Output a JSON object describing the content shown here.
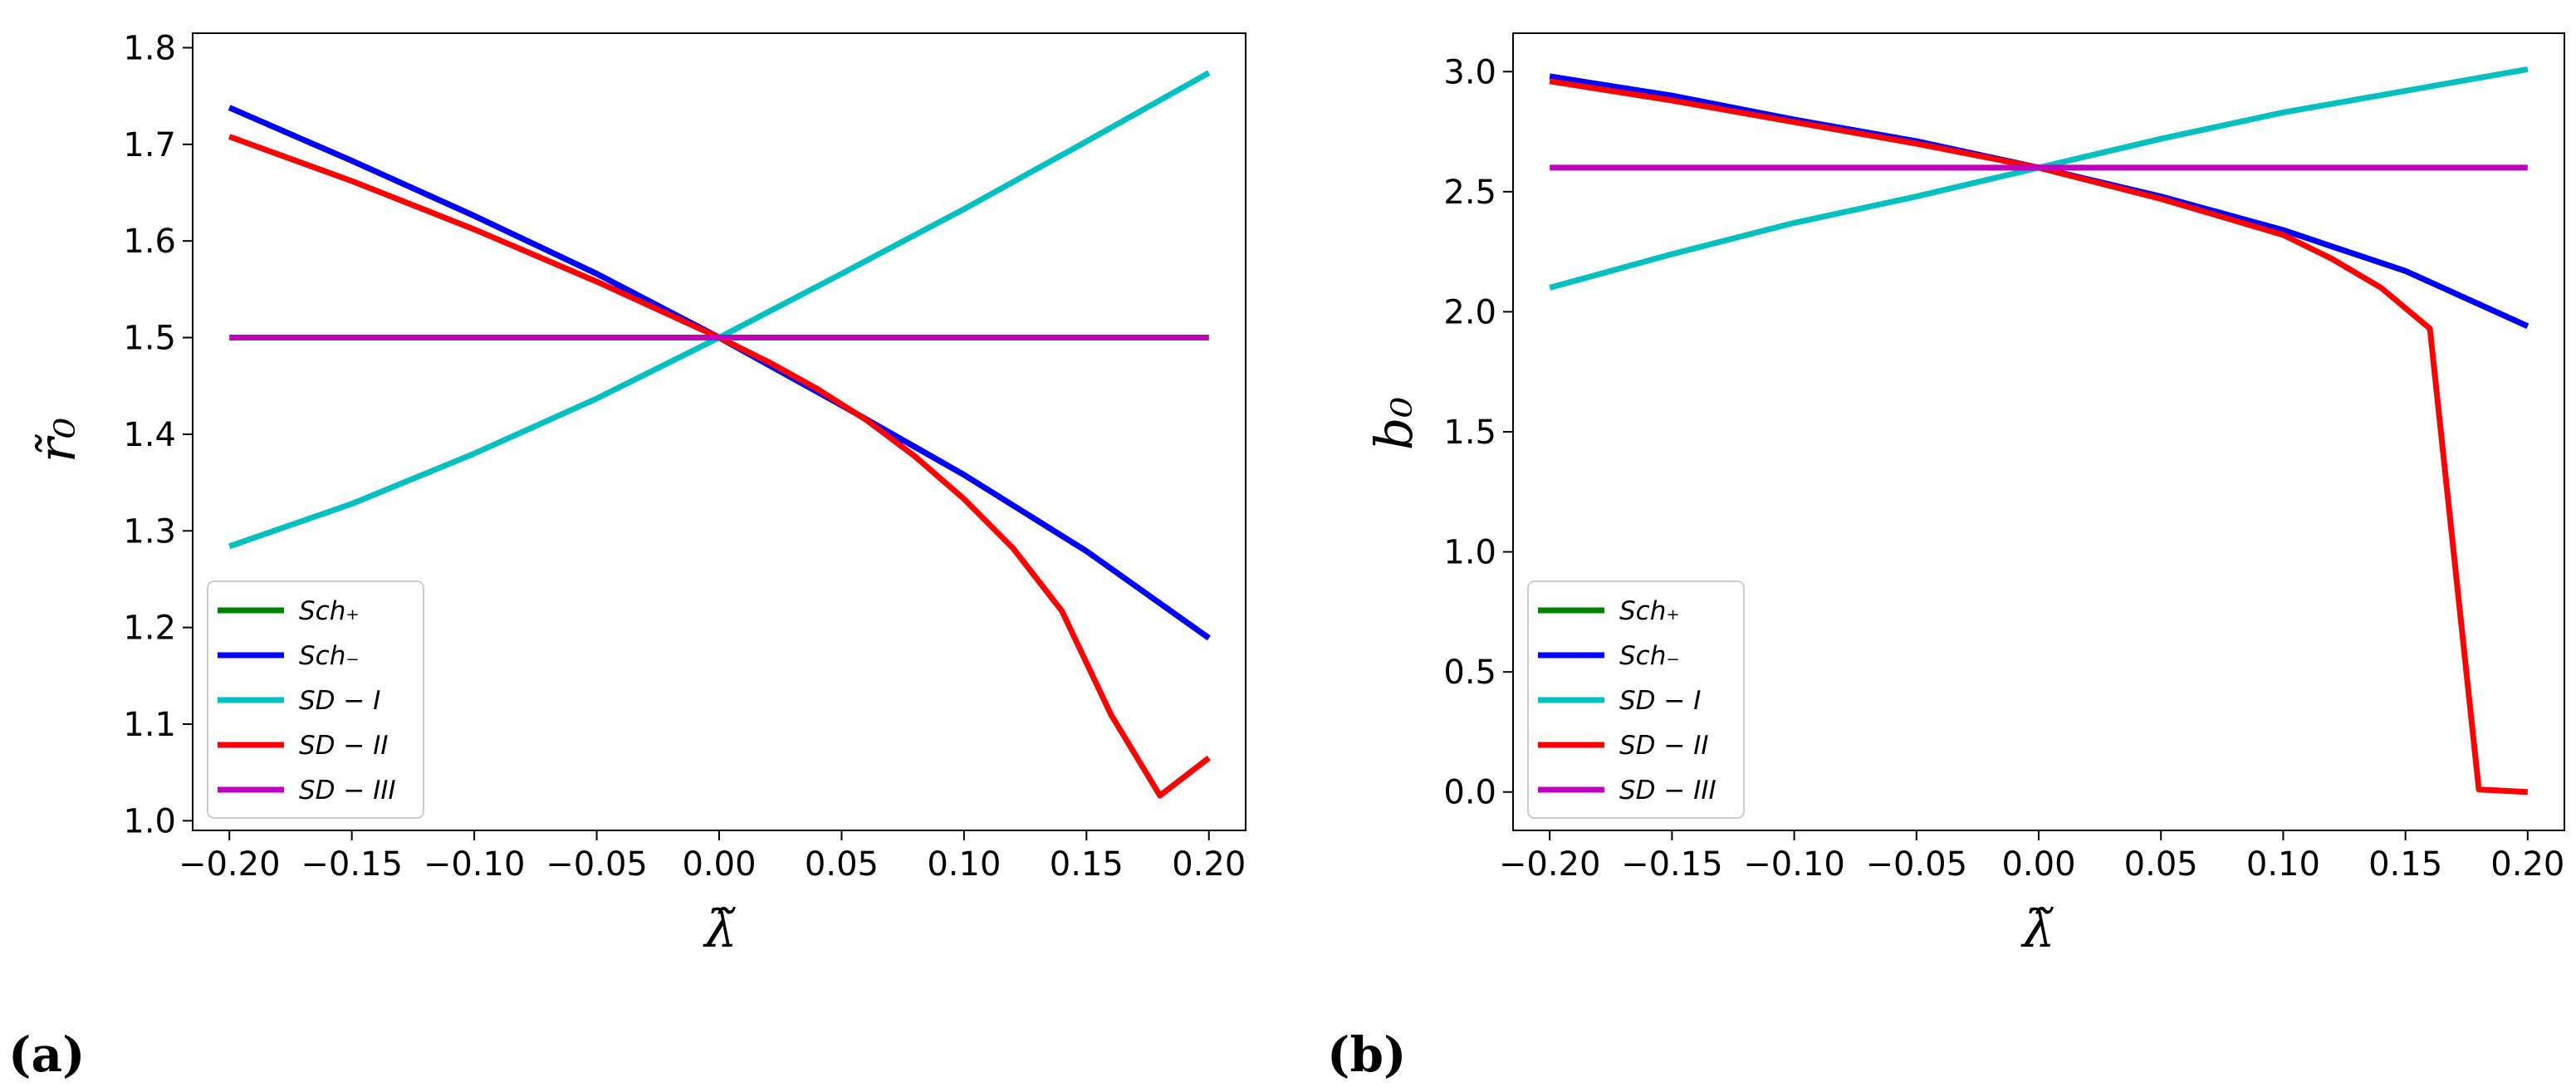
{
  "chart_data": [
    {
      "type": "line",
      "panel": "(a)",
      "xlabel": "λ̃",
      "ylabel": "r̃₀",
      "xlim": [
        -0.215,
        0.215
      ],
      "ylim": [
        0.99,
        1.815
      ],
      "xticks": [
        -0.2,
        -0.15,
        -0.1,
        -0.05,
        0.0,
        0.05,
        0.1,
        0.15,
        0.2
      ],
      "xtick_labels": [
        "−0.20",
        "−0.15",
        "−0.10",
        "−0.05",
        "0.00",
        "0.05",
        "0.10",
        "0.15",
        "0.20"
      ],
      "yticks": [
        1.0,
        1.1,
        1.2,
        1.3,
        1.4,
        1.5,
        1.6,
        1.7,
        1.8
      ],
      "ytick_labels": [
        "1.0",
        "1.1",
        "1.2",
        "1.3",
        "1.4",
        "1.5",
        "1.6",
        "1.7",
        "1.8"
      ],
      "legend_position": "lower-left",
      "series": [
        {
          "name": "Sch₊",
          "color": "#008000",
          "x": [
            -0.2,
            -0.15,
            -0.1,
            -0.05,
            0.0,
            0.05,
            0.1,
            0.15,
            0.2
          ],
          "y": [
            1.738,
            1.683,
            1.626,
            1.566,
            1.5,
            1.43,
            1.358,
            1.279,
            1.189
          ]
        },
        {
          "name": "Sch₋",
          "color": "#0000ff",
          "x": [
            -0.2,
            -0.15,
            -0.1,
            -0.05,
            0.0,
            0.05,
            0.1,
            0.15,
            0.2
          ],
          "y": [
            1.738,
            1.683,
            1.626,
            1.566,
            1.5,
            1.43,
            1.358,
            1.279,
            1.189
          ]
        },
        {
          "name": "SD − I",
          "color": "#00bfbf",
          "x": [
            -0.2,
            -0.15,
            -0.1,
            -0.05,
            0.0,
            0.05,
            0.1,
            0.15,
            0.2
          ],
          "y": [
            1.284,
            1.328,
            1.38,
            1.437,
            1.5,
            1.566,
            1.633,
            1.703,
            1.774
          ]
        },
        {
          "name": "SD − II",
          "color": "#ff0000",
          "x": [
            -0.2,
            -0.15,
            -0.1,
            -0.05,
            0.0,
            0.02,
            0.04,
            0.06,
            0.08,
            0.1,
            0.12,
            0.14,
            0.16,
            0.18,
            0.2
          ],
          "y": [
            1.708,
            1.662,
            1.612,
            1.558,
            1.5,
            1.475,
            1.447,
            1.415,
            1.377,
            1.333,
            1.282,
            1.217,
            1.11,
            1.026,
            1.065
          ]
        },
        {
          "name": "SD − III",
          "color": "#bf00bf",
          "x": [
            -0.2,
            0.2
          ],
          "y": [
            1.5,
            1.5
          ]
        }
      ]
    },
    {
      "type": "line",
      "panel": "(b)",
      "xlabel": "λ̃",
      "ylabel": "b₀",
      "xlim": [
        -0.215,
        0.215
      ],
      "ylim": [
        -0.16,
        3.16
      ],
      "xticks": [
        -0.2,
        -0.15,
        -0.1,
        -0.05,
        0.0,
        0.05,
        0.1,
        0.15,
        0.2
      ],
      "xtick_labels": [
        "−0.20",
        "−0.15",
        "−0.10",
        "−0.05",
        "0.00",
        "0.05",
        "0.10",
        "0.15",
        "0.20"
      ],
      "yticks": [
        0.0,
        0.5,
        1.0,
        1.5,
        2.0,
        2.5,
        3.0
      ],
      "ytick_labels": [
        "0.0",
        "0.5",
        "1.0",
        "1.5",
        "2.0",
        "2.5",
        "3.0"
      ],
      "legend_position": "lower-left",
      "series": [
        {
          "name": "Sch₊",
          "color": "#008000",
          "x": [
            -0.2,
            -0.15,
            -0.1,
            -0.05,
            0.0,
            0.05,
            0.1,
            0.15,
            0.2
          ],
          "y": [
            2.98,
            2.9,
            2.8,
            2.71,
            2.6,
            2.48,
            2.34,
            2.17,
            1.94
          ]
        },
        {
          "name": "Sch₋",
          "color": "#0000ff",
          "x": [
            -0.2,
            -0.15,
            -0.1,
            -0.05,
            0.0,
            0.05,
            0.1,
            0.15,
            0.2
          ],
          "y": [
            2.98,
            2.9,
            2.8,
            2.71,
            2.6,
            2.48,
            2.34,
            2.17,
            1.94
          ]
        },
        {
          "name": "SD − I",
          "color": "#00bfbf",
          "x": [
            -0.2,
            -0.15,
            -0.1,
            -0.05,
            0.0,
            0.05,
            0.1,
            0.15,
            0.2
          ],
          "y": [
            2.1,
            2.24,
            2.37,
            2.48,
            2.6,
            2.72,
            2.83,
            2.92,
            3.01
          ]
        },
        {
          "name": "SD − II",
          "color": "#ff0000",
          "x": [
            -0.2,
            -0.15,
            -0.1,
            -0.05,
            0.0,
            0.05,
            0.1,
            0.12,
            0.14,
            0.16,
            0.18,
            0.2
          ],
          "y": [
            2.96,
            2.88,
            2.79,
            2.7,
            2.6,
            2.47,
            2.32,
            2.22,
            2.1,
            1.93,
            0.01,
            0.0
          ]
        },
        {
          "name": "SD − III",
          "color": "#bf00bf",
          "x": [
            -0.2,
            0.2
          ],
          "y": [
            2.6,
            2.6
          ]
        }
      ]
    }
  ]
}
